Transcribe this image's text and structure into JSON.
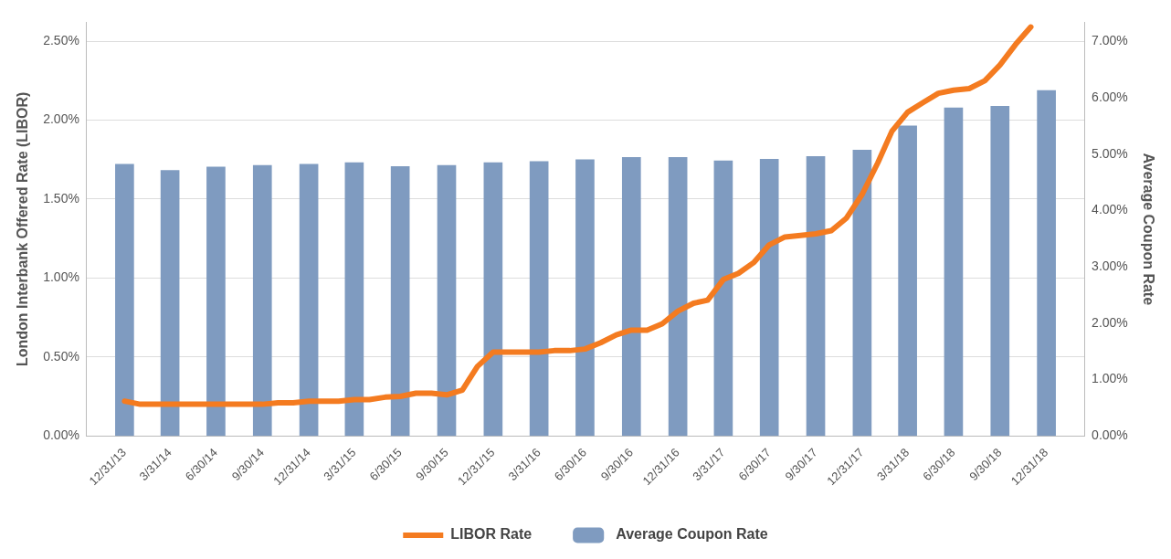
{
  "chart_data": {
    "type": "bar",
    "ylabel": "London Interbank Offered Rate (LIBOR)",
    "y2label": "Average Coupon Rate",
    "xlim": [
      "2013-12-03",
      "2019-01-28"
    ],
    "xticks": [
      {
        "value": "2013-12-31",
        "label": "12/31/13"
      },
      {
        "value": "2014-03-31",
        "label": "3/31/14"
      },
      {
        "value": "2014-06-30",
        "label": "6/30/14"
      },
      {
        "value": "2014-09-30",
        "label": "9/30/14"
      },
      {
        "value": "2014-12-31",
        "label": "12/31/14"
      },
      {
        "value": "2015-03-31",
        "label": "3/31/15"
      },
      {
        "value": "2015-06-30",
        "label": "6/30/15"
      },
      {
        "value": "2015-09-30",
        "label": "9/30/15"
      },
      {
        "value": "2015-12-31",
        "label": "12/31/15"
      },
      {
        "value": "2016-03-31",
        "label": "3/31/16"
      },
      {
        "value": "2016-06-30",
        "label": "6/30/16"
      },
      {
        "value": "2016-09-30",
        "label": "9/30/16"
      },
      {
        "value": "2016-12-31",
        "label": "12/31/16"
      },
      {
        "value": "2017-03-31",
        "label": "3/31/17"
      },
      {
        "value": "2017-06-30",
        "label": "6/30/17"
      },
      {
        "value": "2017-09-30",
        "label": "9/30/17"
      },
      {
        "value": "2017-12-31",
        "label": "12/31/17"
      },
      {
        "value": "2018-03-31",
        "label": "3/31/18"
      },
      {
        "value": "2018-06-30",
        "label": "6/30/18"
      },
      {
        "value": "2018-09-30",
        "label": "9/30/18"
      },
      {
        "value": "2018-12-31",
        "label": "12/31/18"
      }
    ],
    "ylim": [
      0,
      2.62
    ],
    "yticks": [
      {
        "value": 0,
        "label": "0.00%"
      },
      {
        "value": 0.5,
        "label": "0.50%"
      },
      {
        "value": 1,
        "label": "1.00%"
      },
      {
        "value": 1.5,
        "label": "1.50%"
      },
      {
        "value": 2,
        "label": "2.00%"
      },
      {
        "value": 2.5,
        "label": "2.50%"
      }
    ],
    "y2lim": [
      0,
      7.34
    ],
    "y2ticks": [
      {
        "value": 0,
        "label": "0.00%"
      },
      {
        "value": 1,
        "label": "1.00%"
      },
      {
        "value": 2,
        "label": "2.00%"
      },
      {
        "value": 3,
        "label": "3.00%"
      },
      {
        "value": 4,
        "label": "4.00%"
      },
      {
        "value": 5,
        "label": "5.00%"
      },
      {
        "value": 6,
        "label": "6.00%"
      },
      {
        "value": 7,
        "label": "7.00%"
      }
    ],
    "grid": "y",
    "legend": "bottom",
    "marker": "none",
    "line_style": "solid",
    "series": [
      {
        "name": "LIBOR Rate",
        "type": "line",
        "color": "#f47b20",
        "x": [
          "2013-12-31",
          "2014-01-31",
          "2014-02-28",
          "2014-03-31",
          "2014-04-30",
          "2014-05-31",
          "2014-06-30",
          "2014-07-31",
          "2014-08-31",
          "2014-09-30",
          "2014-10-31",
          "2014-11-30",
          "2014-12-31",
          "2015-01-31",
          "2015-02-28",
          "2015-03-31",
          "2015-04-30",
          "2015-05-31",
          "2015-06-30",
          "2015-07-31",
          "2015-08-31",
          "2015-09-30",
          "2015-10-31",
          "2015-11-30",
          "2015-12-31",
          "2016-01-31",
          "2016-02-29",
          "2016-03-31",
          "2016-04-30",
          "2016-05-31",
          "2016-06-30",
          "2016-07-31",
          "2016-08-31",
          "2016-09-30",
          "2016-10-31",
          "2016-11-30",
          "2016-12-31",
          "2017-01-31",
          "2017-02-28",
          "2017-03-31",
          "2017-04-30",
          "2017-05-31",
          "2017-06-30",
          "2017-07-31",
          "2017-08-31",
          "2017-09-30",
          "2017-10-31",
          "2017-11-30",
          "2017-12-31",
          "2018-01-31",
          "2018-02-28",
          "2018-03-31",
          "2018-04-30",
          "2018-05-31",
          "2018-06-30",
          "2018-07-31",
          "2018-08-31",
          "2018-09-30",
          "2018-10-31",
          "2018-11-30"
        ],
        "values": [
          0.22,
          0.2,
          0.2,
          0.2,
          0.2,
          0.2,
          0.2,
          0.2,
          0.2,
          0.2,
          0.21,
          0.21,
          0.22,
          0.22,
          0.22,
          0.23,
          0.23,
          0.245,
          0.25,
          0.27,
          0.27,
          0.26,
          0.29,
          0.44,
          0.53,
          0.53,
          0.53,
          0.53,
          0.54,
          0.54,
          0.55,
          0.59,
          0.64,
          0.67,
          0.67,
          0.71,
          0.79,
          0.84,
          0.86,
          0.99,
          1.03,
          1.1,
          1.21,
          1.26,
          1.27,
          1.28,
          1.3,
          1.38,
          1.53,
          1.73,
          1.93,
          2.05,
          2.11,
          2.17,
          2.19,
          2.2,
          2.25,
          2.35,
          2.48,
          2.59
        ]
      },
      {
        "name": "Average Coupon Rate",
        "axis": "y2",
        "color": "#7f9bc0",
        "x": [
          "2013-12-31",
          "2014-03-31",
          "2014-06-30",
          "2014-09-30",
          "2014-12-31",
          "2015-03-31",
          "2015-06-30",
          "2015-09-30",
          "2015-12-31",
          "2016-03-31",
          "2016-06-30",
          "2016-09-30",
          "2016-12-31",
          "2017-03-31",
          "2017-06-30",
          "2017-09-30",
          "2017-12-31",
          "2018-03-31",
          "2018-06-30",
          "2018-09-30",
          "2018-12-31"
        ],
        "values": [
          4.82,
          4.71,
          4.77,
          4.8,
          4.82,
          4.85,
          4.78,
          4.8,
          4.85,
          4.87,
          4.9,
          4.94,
          4.94,
          4.88,
          4.91,
          4.96,
          5.07,
          5.5,
          5.82,
          5.85,
          6.13
        ]
      }
    ]
  }
}
